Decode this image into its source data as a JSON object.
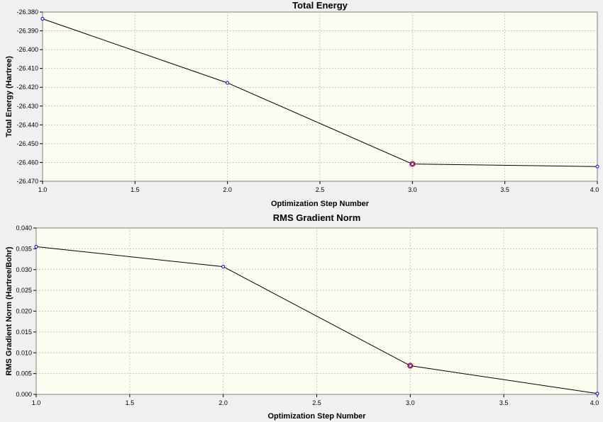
{
  "chart_data": [
    {
      "type": "line",
      "title": "Total Energy",
      "xlabel": "Optimization Step Number",
      "ylabel": "Total Energy (Hartree)",
      "x": [
        1.0,
        2.0,
        3.0,
        4.0
      ],
      "values": [
        -26.3836,
        -26.4177,
        -26.4608,
        -26.4622
      ],
      "highlight_index": 2,
      "xlim": [
        1.0,
        4.0
      ],
      "ylim": [
        -26.47,
        -26.38
      ],
      "xticks": [
        "1.0",
        "1.5",
        "2.0",
        "2.5",
        "3.0",
        "3.5",
        "4.0"
      ],
      "yticks": [
        "-26.380",
        "-26.390",
        "-26.400",
        "-26.410",
        "-26.420",
        "-26.430",
        "-26.440",
        "-26.450",
        "-26.460",
        "-26.470"
      ],
      "grid": true,
      "line_color": "#000000",
      "marker_color": "#0000cc",
      "highlight_color": "#cc0000",
      "plot_background": "#fcfcf0"
    },
    {
      "type": "line",
      "title": "RMS Gradient Norm",
      "xlabel": "Optimization Step Number",
      "ylabel": "RMS Gradient Norm (Hartree/Bohr)",
      "x": [
        1.0,
        2.0,
        3.0,
        4.0
      ],
      "values": [
        0.0355,
        0.0307,
        0.0069,
        0.0002
      ],
      "highlight_index": 2,
      "xlim": [
        1.0,
        4.0
      ],
      "ylim": [
        0.0,
        0.04
      ],
      "xticks": [
        "1.0",
        "1.5",
        "2.0",
        "2.5",
        "3.0",
        "3.5",
        "4.0"
      ],
      "yticks": [
        "0.040",
        "0.035",
        "0.030",
        "0.025",
        "0.020",
        "0.015",
        "0.010",
        "0.005",
        "0.000"
      ],
      "grid": true,
      "line_color": "#000000",
      "marker_color": "#0000cc",
      "highlight_color": "#cc0000",
      "plot_background": "#fcfcf0"
    }
  ]
}
